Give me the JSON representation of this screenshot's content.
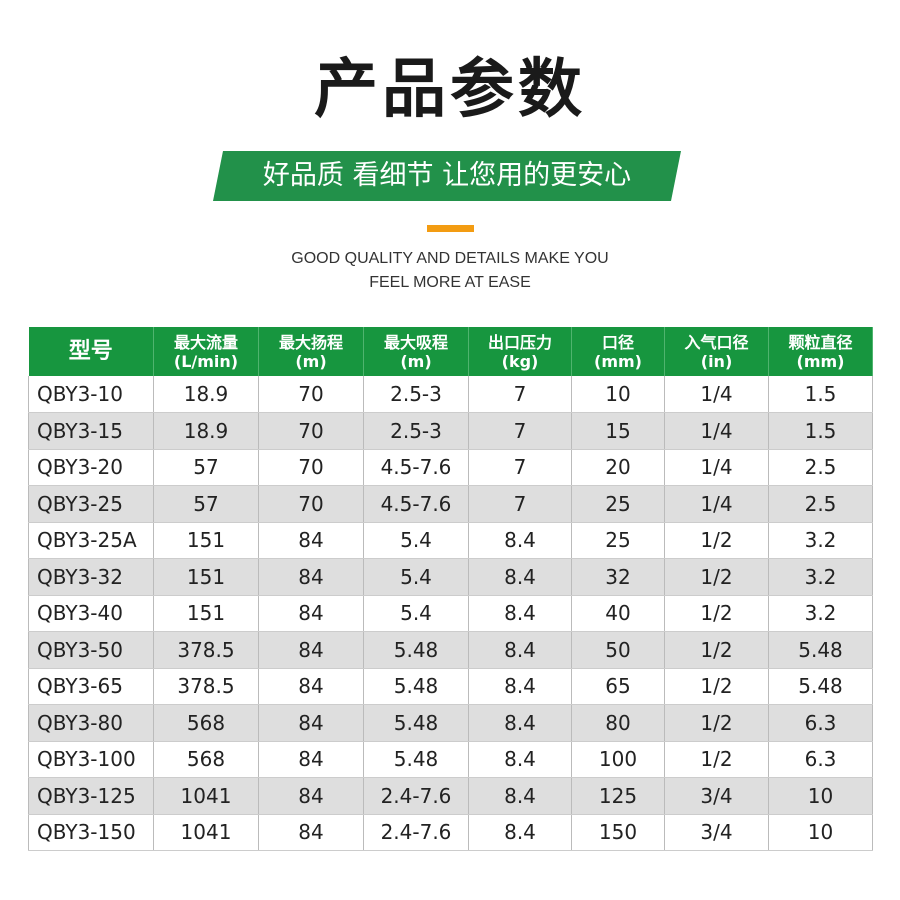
{
  "title": "产品参数",
  "banner": "好品质 看细节 让您用的更安心",
  "accent": "#f39c12",
  "header_color": "#17963f",
  "subtitle": {
    "line1": "GOOD QUALITY AND DETAILS MAKE YOU",
    "line2": "FEEL MORE AT EASE"
  },
  "table": {
    "headers": [
      [
        "型号",
        ""
      ],
      [
        "最大流量",
        "(L/min)"
      ],
      [
        "最大扬程",
        "(m)"
      ],
      [
        "最大吸程",
        "(m)"
      ],
      [
        "出口压力",
        "(kg)"
      ],
      [
        "口径",
        "(mm)"
      ],
      [
        "入气口径",
        "(in)"
      ],
      [
        "颗粒直径",
        "(mm)"
      ]
    ],
    "rows": [
      [
        "QBY3-10",
        "18.9",
        "70",
        "2.5-3",
        "7",
        "10",
        "1/4",
        "1.5"
      ],
      [
        "QBY3-15",
        "18.9",
        "70",
        "2.5-3",
        "7",
        "15",
        "1/4",
        "1.5"
      ],
      [
        "QBY3-20",
        "57",
        "70",
        "4.5-7.6",
        "7",
        "20",
        "1/4",
        "2.5"
      ],
      [
        "QBY3-25",
        "57",
        "70",
        "4.5-7.6",
        "7",
        "25",
        "1/4",
        "2.5"
      ],
      [
        "QBY3-25A",
        "151",
        "84",
        "5.4",
        "8.4",
        "25",
        "1/2",
        "3.2"
      ],
      [
        "QBY3-32",
        "151",
        "84",
        "5.4",
        "8.4",
        "32",
        "1/2",
        "3.2"
      ],
      [
        "QBY3-40",
        "151",
        "84",
        "5.4",
        "8.4",
        "40",
        "1/2",
        "3.2"
      ],
      [
        "QBY3-50",
        "378.5",
        "84",
        "5.48",
        "8.4",
        "50",
        "1/2",
        "5.48"
      ],
      [
        "QBY3-65",
        "378.5",
        "84",
        "5.48",
        "8.4",
        "65",
        "1/2",
        "5.48"
      ],
      [
        "QBY3-80",
        "568",
        "84",
        "5.48",
        "8.4",
        "80",
        "1/2",
        "6.3"
      ],
      [
        "QBY3-100",
        "568",
        "84",
        "5.48",
        "8.4",
        "100",
        "1/2",
        "6.3"
      ],
      [
        "QBY3-125",
        "1041",
        "84",
        "2.4-7.6",
        "8.4",
        "125",
        "3/4",
        "10"
      ],
      [
        "QBY3-150",
        "1041",
        "84",
        "2.4-7.6",
        "8.4",
        "150",
        "3/4",
        "10"
      ]
    ]
  }
}
